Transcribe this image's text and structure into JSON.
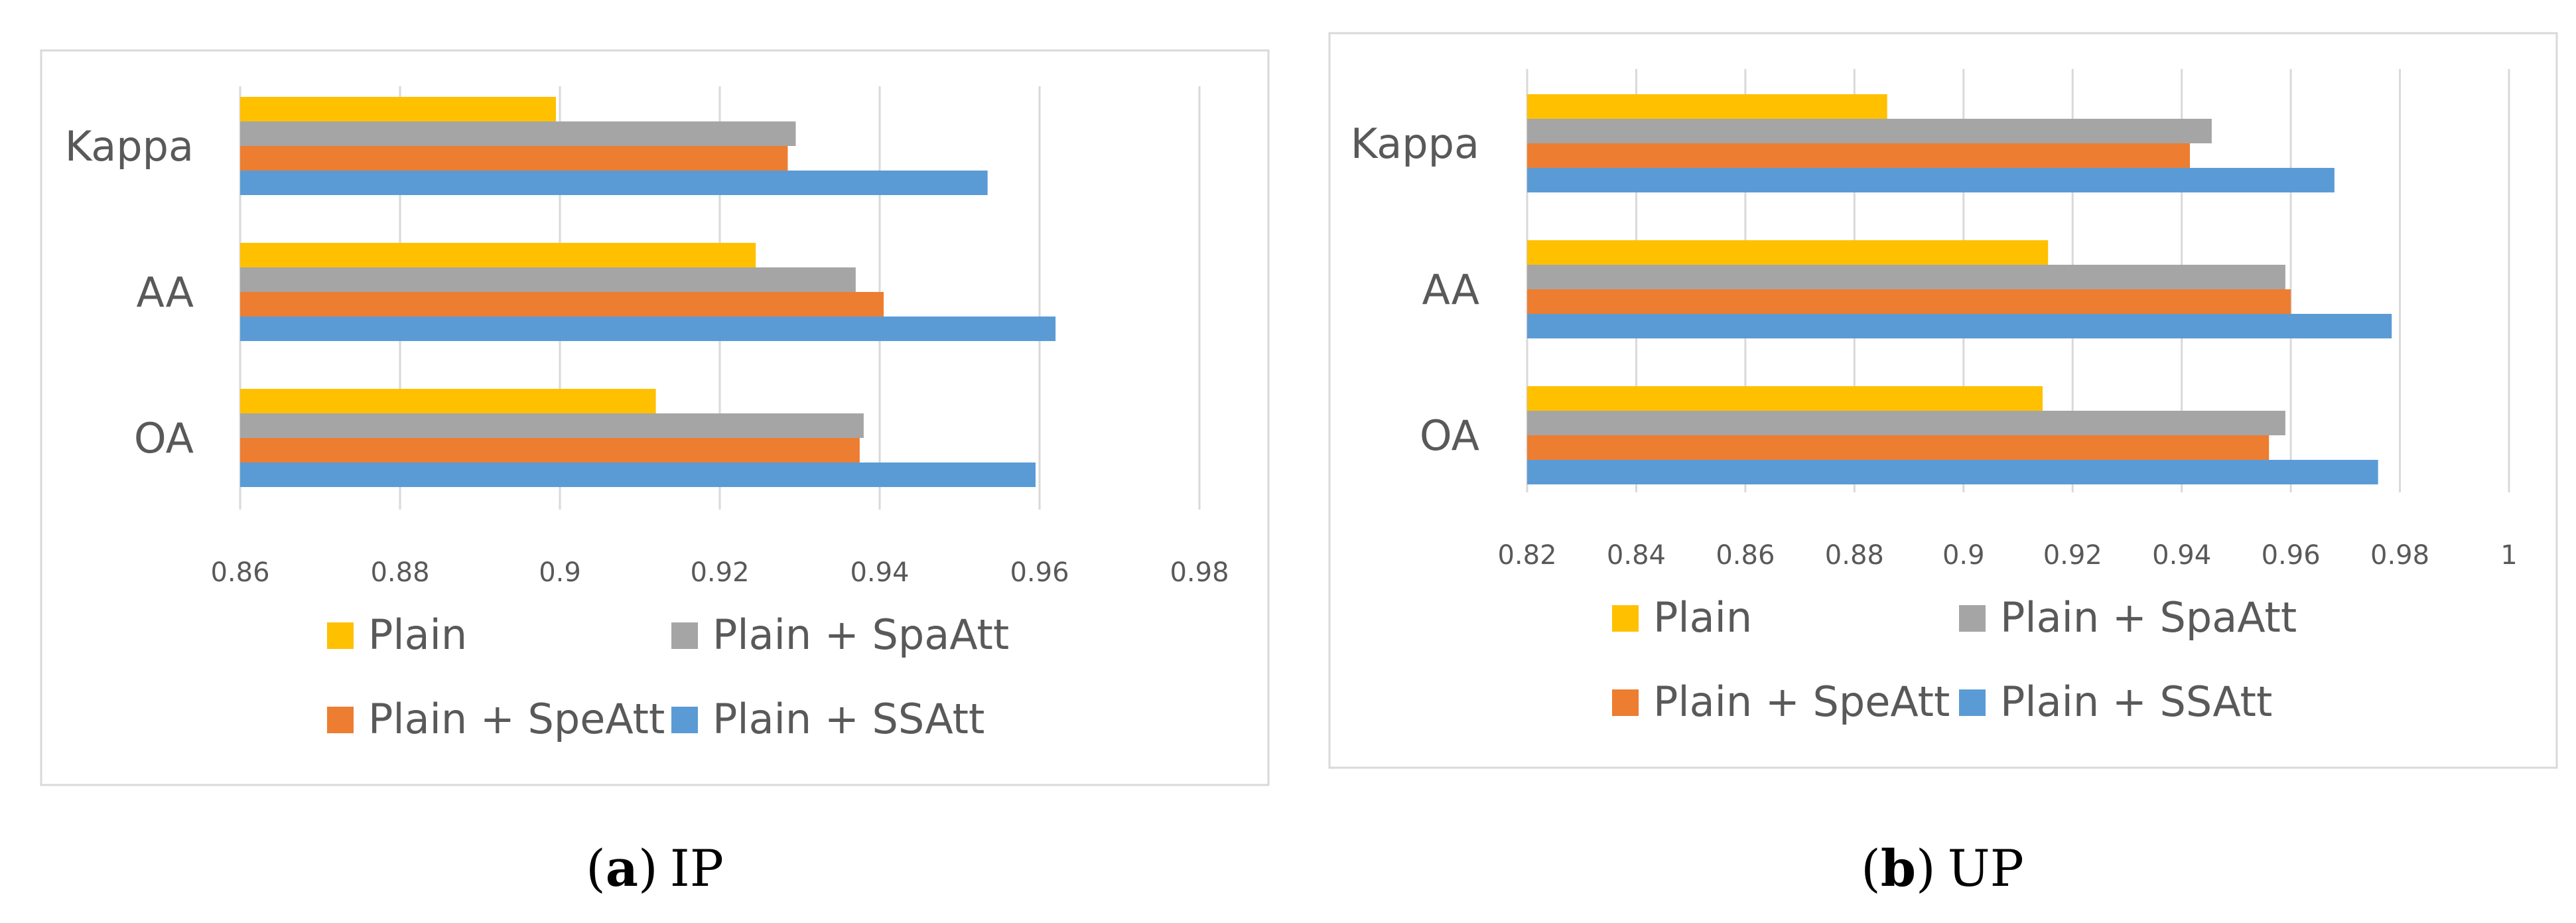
{
  "colors": {
    "plain": "#FFC000",
    "spaatt": "#A5A5A5",
    "speatt": "#ED7D31",
    "ssatt": "#5B9BD5",
    "grid": "#D9D9D9",
    "frame": "#D9D9D9"
  },
  "chart_data": [
    {
      "type": "bar",
      "orientation": "horizontal",
      "caption": {
        "paren_open": "(",
        "letter": "a",
        "paren_close": ")",
        "name": "IP"
      },
      "categories": [
        "Kappa",
        "AA",
        "OA"
      ],
      "series": [
        {
          "name": "Plain",
          "color_key": "plain",
          "values": [
            0.8995,
            0.9245,
            0.912
          ]
        },
        {
          "name": "Plain + SpaAtt",
          "color_key": "spaatt",
          "values": [
            0.9295,
            0.937,
            0.938
          ]
        },
        {
          "name": "Plain + SpeAtt",
          "color_key": "speatt",
          "values": [
            0.9285,
            0.9405,
            0.9375
          ]
        },
        {
          "name": "Plain + SSAtt",
          "color_key": "ssatt",
          "values": [
            0.9535,
            0.962,
            0.9595
          ]
        }
      ],
      "xlim": [
        0.86,
        0.98
      ],
      "xticks": [
        0.86,
        0.88,
        0.9,
        0.92,
        0.94,
        0.96,
        0.98
      ],
      "xtick_labels": [
        "0.86",
        "0.88",
        "0.9",
        "0.92",
        "0.94",
        "0.96",
        "0.98"
      ],
      "grid": true,
      "legend_position": "bottom"
    },
    {
      "type": "bar",
      "orientation": "horizontal",
      "caption": {
        "paren_open": "(",
        "letter": "b",
        "paren_close": ")",
        "name": "UP"
      },
      "categories": [
        "Kappa",
        "AA",
        "OA"
      ],
      "series": [
        {
          "name": "Plain",
          "color_key": "plain",
          "values": [
            0.886,
            0.9155,
            0.9145
          ]
        },
        {
          "name": "Plain + SpaAtt",
          "color_key": "spaatt",
          "values": [
            0.9455,
            0.959,
            0.959
          ]
        },
        {
          "name": "Plain + SpeAtt",
          "color_key": "speatt",
          "values": [
            0.9415,
            0.96,
            0.956
          ]
        },
        {
          "name": "Plain + SSAtt",
          "color_key": "ssatt",
          "values": [
            0.968,
            0.9785,
            0.976
          ]
        }
      ],
      "xlim": [
        0.82,
        1.0
      ],
      "xticks": [
        0.82,
        0.84,
        0.86,
        0.88,
        0.9,
        0.92,
        0.94,
        0.96,
        0.98,
        1.0
      ],
      "xtick_labels": [
        "0.82",
        "0.84",
        "0.86",
        "0.88",
        "0.9",
        "0.92",
        "0.94",
        "0.96",
        "0.98",
        "1"
      ],
      "grid": true,
      "legend_position": "bottom"
    }
  ]
}
